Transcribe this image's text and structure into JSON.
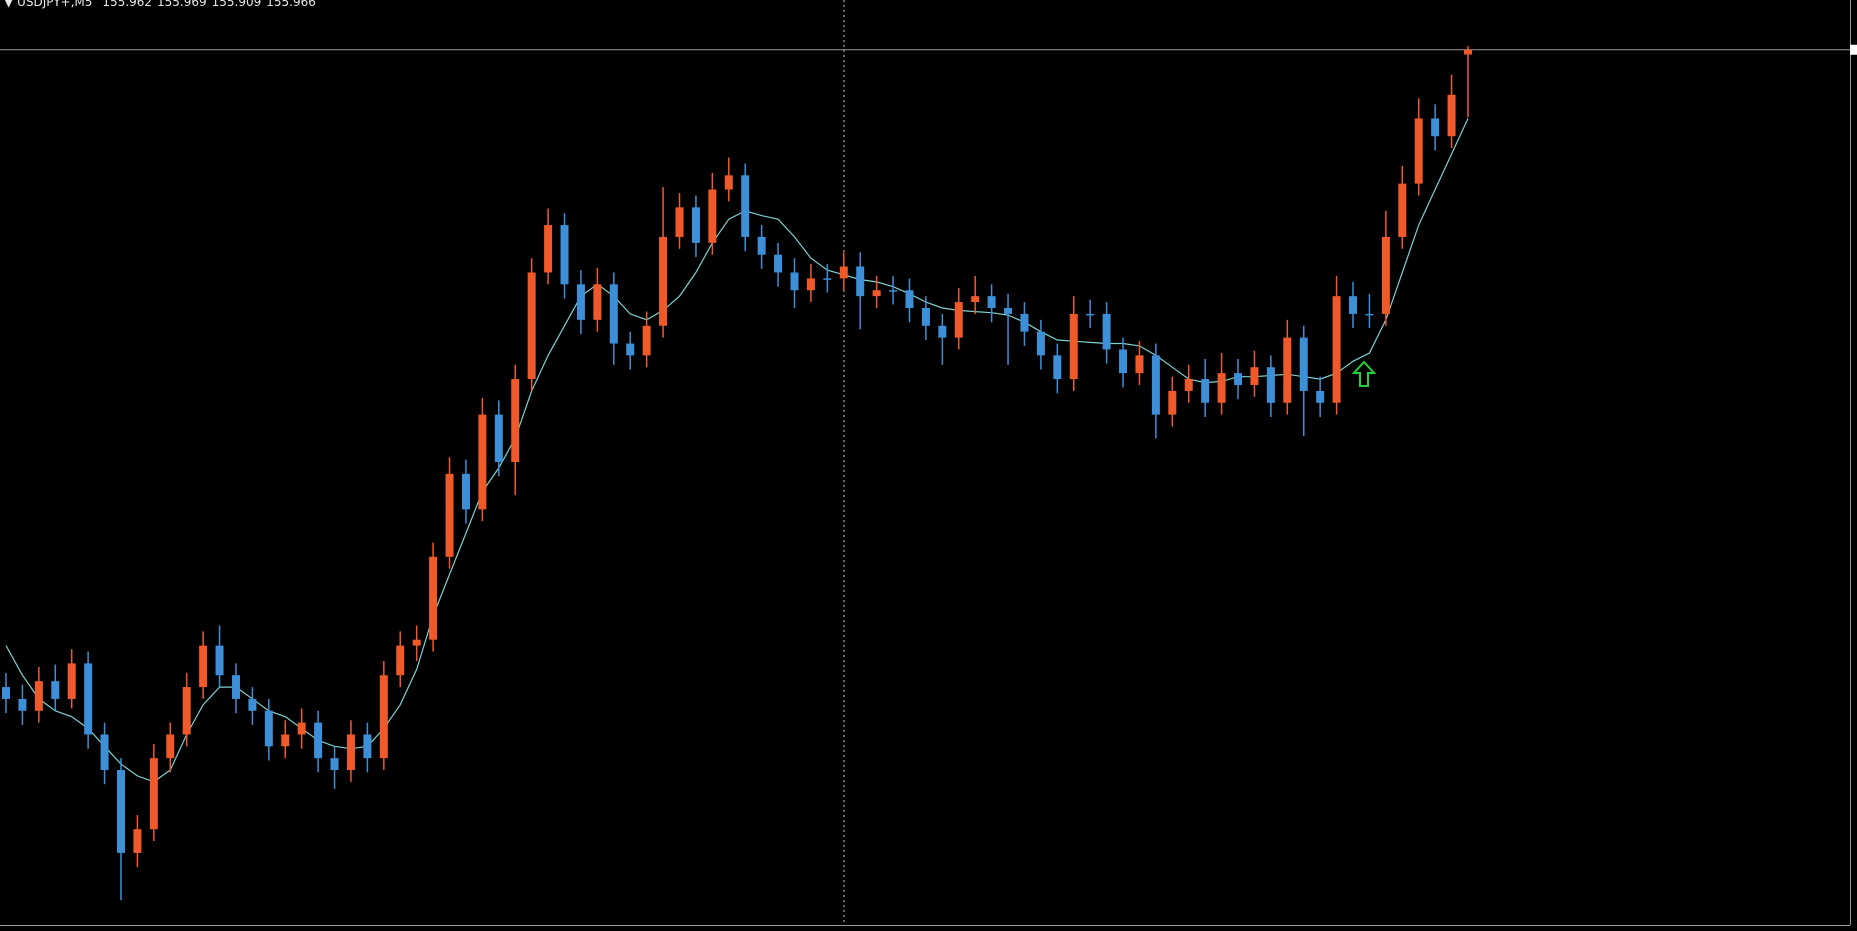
{
  "chart_data": {
    "type": "candlestick",
    "symbol": "USDJPY+,M5",
    "ylim": [
      155.228,
      156.008
    ],
    "up_color": "#f0592a",
    "down_color": "#3d8fd8",
    "wick_color": "#b8b8b8",
    "ma_color": "#7fd0d0",
    "price_line_color": "#9a9a9a",
    "open": [
      155.428,
      155.418,
      155.408,
      155.433,
      155.418,
      155.448,
      155.388,
      155.358,
      155.288,
      155.308,
      155.368,
      155.388,
      155.428,
      155.463,
      155.438,
      155.418,
      155.408,
      155.378,
      155.388,
      155.398,
      155.368,
      155.358,
      155.388,
      155.368,
      155.438,
      155.463,
      155.468,
      155.538,
      155.608,
      155.578,
      155.658,
      155.618,
      155.688,
      155.778,
      155.818,
      155.768,
      155.738,
      155.768,
      155.718,
      155.708,
      155.733,
      155.808,
      155.833,
      155.803,
      155.848,
      155.86,
      155.808,
      155.793,
      155.778,
      155.763,
      155.773,
      155.773,
      155.783,
      155.758,
      155.763,
      155.763,
      155.748,
      155.733,
      155.723,
      155.753,
      155.758,
      155.748,
      155.743,
      155.728,
      155.708,
      155.688,
      155.743,
      155.743,
      155.713,
      155.693,
      155.708,
      155.658,
      155.678,
      155.688,
      155.668,
      155.693,
      155.683,
      155.698,
      155.668,
      155.723,
      155.678,
      155.668,
      155.758,
      155.743,
      155.743,
      155.808,
      155.853,
      155.908,
      155.893,
      155.962
    ],
    "high": [
      155.44,
      155.43,
      155.445,
      155.447,
      155.46,
      155.458,
      155.398,
      155.368,
      155.32,
      155.38,
      155.398,
      155.44,
      155.475,
      155.48,
      155.448,
      155.428,
      155.418,
      155.4,
      155.41,
      155.408,
      155.378,
      155.4,
      155.398,
      155.45,
      155.475,
      155.48,
      155.55,
      155.622,
      155.62,
      155.672,
      155.67,
      155.7,
      155.79,
      155.832,
      155.828,
      155.78,
      155.782,
      155.778,
      155.728,
      155.745,
      155.85,
      155.845,
      155.843,
      155.862,
      155.875,
      155.87,
      155.818,
      155.803,
      155.79,
      155.785,
      155.785,
      155.795,
      155.795,
      155.775,
      155.775,
      155.773,
      155.758,
      155.743,
      155.765,
      155.775,
      155.768,
      155.76,
      155.753,
      155.738,
      155.718,
      155.758,
      155.755,
      155.753,
      155.723,
      155.72,
      155.718,
      155.69,
      155.7,
      155.705,
      155.71,
      155.705,
      155.712,
      155.708,
      155.738,
      155.733,
      155.69,
      155.775,
      155.77,
      155.76,
      155.83,
      155.868,
      155.925,
      155.92,
      155.945,
      155.969
    ],
    "low": [
      155.406,
      155.396,
      155.398,
      155.408,
      155.41,
      155.376,
      155.346,
      155.248,
      155.276,
      155.298,
      155.356,
      155.378,
      155.418,
      155.428,
      155.406,
      155.396,
      155.366,
      155.368,
      155.376,
      155.356,
      155.342,
      155.348,
      155.356,
      155.358,
      155.428,
      155.45,
      155.458,
      155.528,
      155.566,
      155.568,
      155.606,
      155.59,
      155.678,
      155.768,
      155.756,
      155.726,
      155.728,
      155.7,
      155.696,
      155.698,
      155.723,
      155.798,
      155.791,
      155.793,
      155.838,
      155.796,
      155.781,
      155.766,
      155.748,
      155.753,
      155.761,
      155.763,
      155.73,
      155.748,
      155.751,
      155.736,
      155.721,
      155.7,
      155.713,
      155.743,
      155.736,
      155.7,
      155.716,
      155.696,
      155.676,
      155.678,
      155.731,
      155.701,
      155.681,
      155.683,
      155.638,
      155.648,
      155.668,
      155.656,
      155.658,
      155.671,
      155.673,
      155.656,
      155.658,
      155.64,
      155.656,
      155.658,
      155.731,
      155.731,
      155.733,
      155.798,
      155.843,
      155.881,
      155.883,
      155.909
    ],
    "close": [
      155.418,
      155.408,
      155.433,
      155.418,
      155.448,
      155.388,
      155.358,
      155.288,
      155.308,
      155.368,
      155.388,
      155.428,
      155.463,
      155.438,
      155.418,
      155.408,
      155.378,
      155.388,
      155.398,
      155.368,
      155.358,
      155.388,
      155.368,
      155.438,
      155.463,
      155.468,
      155.538,
      155.608,
      155.578,
      155.658,
      155.618,
      155.688,
      155.778,
      155.818,
      155.768,
      155.738,
      155.768,
      155.718,
      155.708,
      155.733,
      155.808,
      155.833,
      155.803,
      155.848,
      155.86,
      155.808,
      155.793,
      155.778,
      155.763,
      155.773,
      155.773,
      155.783,
      155.758,
      155.763,
      155.763,
      155.748,
      155.733,
      155.723,
      155.753,
      155.758,
      155.748,
      155.743,
      155.728,
      155.708,
      155.688,
      155.743,
      155.743,
      155.713,
      155.693,
      155.708,
      155.658,
      155.678,
      155.688,
      155.668,
      155.693,
      155.683,
      155.698,
      155.668,
      155.723,
      155.678,
      155.668,
      155.758,
      155.743,
      155.743,
      155.808,
      155.853,
      155.908,
      155.893,
      155.928,
      155.966
    ],
    "ma_values": [
      155.463,
      155.438,
      155.418,
      155.408,
      155.403,
      155.393,
      155.378,
      155.363,
      155.353,
      155.348,
      155.358,
      155.388,
      155.413,
      155.428,
      155.428,
      155.418,
      155.408,
      155.403,
      155.393,
      155.383,
      155.378,
      155.376,
      155.378,
      155.393,
      155.413,
      155.443,
      155.488,
      155.523,
      155.558,
      155.593,
      155.613,
      155.638,
      155.678,
      155.708,
      155.733,
      155.758,
      155.768,
      155.758,
      155.743,
      155.738,
      155.746,
      155.758,
      155.778,
      155.803,
      155.823,
      155.83,
      155.826,
      155.823,
      155.808,
      155.79,
      155.78,
      155.776,
      155.772,
      155.77,
      155.766,
      155.76,
      155.753,
      155.748,
      155.746,
      155.745,
      155.744,
      155.742,
      155.736,
      155.728,
      155.721,
      155.72,
      155.719,
      155.718,
      155.718,
      155.716,
      155.708,
      155.698,
      155.688,
      155.685,
      155.686,
      155.69,
      155.69,
      155.691,
      155.692,
      155.69,
      155.688,
      155.693,
      155.703,
      155.71,
      155.738,
      155.778,
      155.818,
      155.848,
      155.878,
      155.908
    ]
  }
}
